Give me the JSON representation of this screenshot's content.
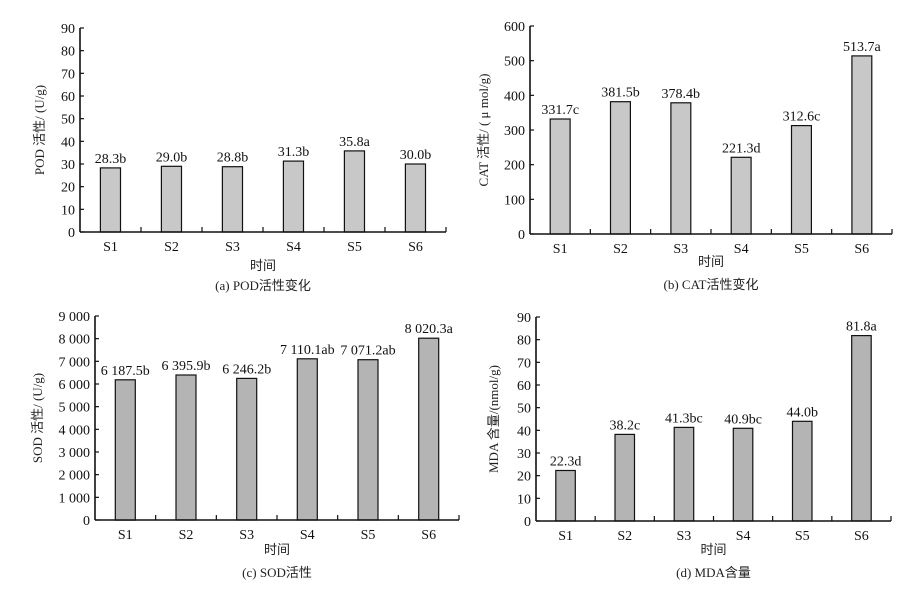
{
  "chart_data": [
    {
      "id": "a",
      "type": "bar",
      "categories": [
        "S1",
        "S2",
        "S3",
        "S4",
        "S5",
        "S6"
      ],
      "values": [
        28.3,
        29.0,
        28.8,
        31.3,
        35.8,
        30.0
      ],
      "data_labels": [
        "28.3b",
        "29.0b",
        "28.8b",
        "31.3b",
        "35.8a",
        "30.0b"
      ],
      "ylabel": "POD 活性/ (U/g)",
      "xlabel": "时间",
      "caption": "(a)  POD活性变化",
      "ylim": [
        0,
        90
      ],
      "yticks": [
        0,
        10,
        20,
        30,
        40,
        50,
        60,
        70,
        80,
        90
      ],
      "ytick_labels": [
        "0",
        "10",
        "20",
        "30",
        "40",
        "50",
        "60",
        "70",
        "80",
        "90"
      ],
      "bar_color": "#c8c8c8",
      "grid": false
    },
    {
      "id": "b",
      "type": "bar",
      "categories": [
        "S1",
        "S2",
        "S3",
        "S4",
        "S5",
        "S6"
      ],
      "values": [
        331.7,
        381.5,
        378.4,
        221.3,
        312.6,
        513.7
      ],
      "data_labels": [
        "331.7c",
        "381.5b",
        "378.4b",
        "221.3d",
        "312.6c",
        "513.7a"
      ],
      "ylabel": "CAT 活性/ ( μ mol/g)",
      "xlabel": "时间",
      "caption": "(b)  CAT活性变化",
      "ylim": [
        0,
        600
      ],
      "yticks": [
        0,
        100,
        200,
        300,
        400,
        500,
        600
      ],
      "ytick_labels": [
        "0",
        "100",
        "200",
        "300",
        "400",
        "500",
        "600"
      ],
      "bar_color": "#c8c8c8",
      "grid": false
    },
    {
      "id": "c",
      "type": "bar",
      "categories": [
        "S1",
        "S2",
        "S3",
        "S4",
        "S5",
        "S6"
      ],
      "values": [
        6187.5,
        6395.9,
        6246.2,
        7110.1,
        7071.2,
        8020.3
      ],
      "data_labels": [
        "6 187.5b",
        "6 395.9b",
        "6 246.2b",
        "7 110.1ab",
        "7 071.2ab",
        "8 020.3a"
      ],
      "ylabel": "SOD 活性/ (U/g)",
      "xlabel": "时间",
      "caption": "(c)  SOD活性",
      "ylim": [
        0,
        9000
      ],
      "yticks": [
        0,
        1000,
        2000,
        3000,
        4000,
        5000,
        6000,
        7000,
        8000,
        9000
      ],
      "ytick_labels": [
        "0",
        "1 000",
        "2 000",
        "3 000",
        "4 000",
        "5 000",
        "6 000",
        "7 000",
        "8 000",
        "9 000"
      ],
      "bar_color": "#b4b4b4",
      "grid": false
    },
    {
      "id": "d",
      "type": "bar",
      "categories": [
        "S1",
        "S2",
        "S3",
        "S4",
        "S5",
        "S6"
      ],
      "values": [
        22.3,
        38.2,
        41.3,
        40.9,
        44.0,
        81.8
      ],
      "data_labels": [
        "22.3d",
        "38.2c",
        "41.3bc",
        "40.9bc",
        "44.0b",
        "81.8a"
      ],
      "ylabel": "MDA 含量/(nmol/g)",
      "xlabel": "时间",
      "caption": "(d)  MDA含量",
      "ylim": [
        0,
        90
      ],
      "yticks": [
        0,
        10,
        20,
        30,
        40,
        50,
        60,
        70,
        80,
        90
      ],
      "ytick_labels": [
        "0",
        "10",
        "20",
        "30",
        "40",
        "50",
        "60",
        "70",
        "80",
        "90"
      ],
      "bar_color": "#b4b4b4",
      "grid": false
    }
  ]
}
